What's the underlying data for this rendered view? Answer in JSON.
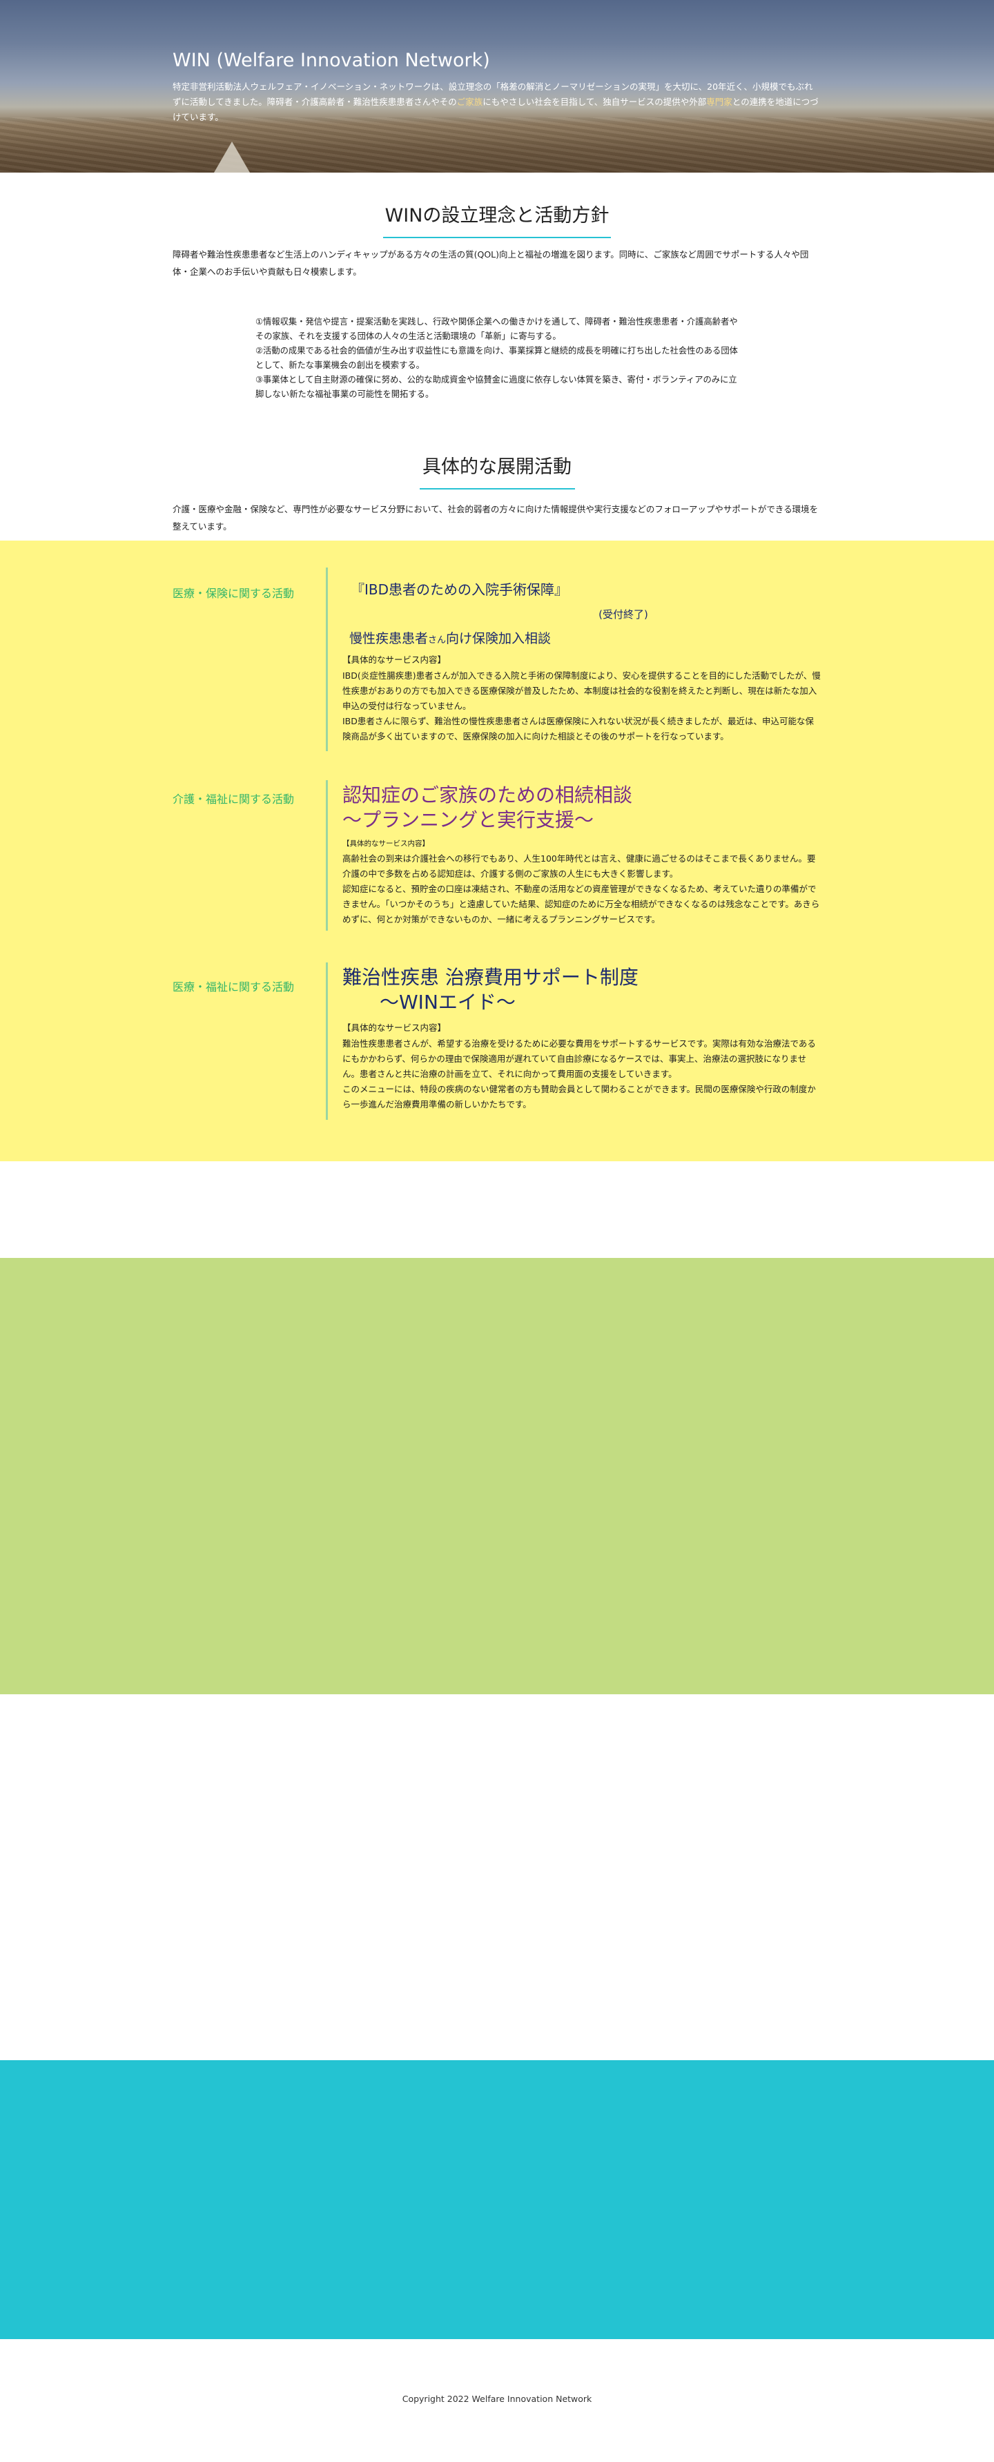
{
  "hero": {
    "title": "WIN (Welfare Innovation Network)",
    "desc_pre": "特定非営利活動法人ウェルフェア・イノベーション・ネットワークは、設立理念の「格差の解消とノーマリゼーションの実現」を大切に、20年近く、小規模でもぶれずに活動してきました。障碍者・介護高齢者・難治性疾患患者さんやその",
    "desc_accent1": "ご家族",
    "desc_mid": "にもやさしい社会を目指して、独自サービスの提供や外部",
    "desc_accent2": "専門家",
    "desc_post": "との連携を地道につづけています。"
  },
  "philosophy": {
    "title": "WINの設立理念と活動方針",
    "lead": "障碍者や難治性疾患患者など生活上のハンディキャップがある方々の生活の質(QOL)向上と福祉の増進を図ります。同時に、ご家族など周囲でサポートする人々や団体・企業へのお手伝いや貢献も日々模索します。",
    "policies": [
      "①情報収集・発信や提言・提案活動を実践し、行政や関係企業への働きかけを通して、障碍者・難治性疾患患者・介護高齢者やその家族、それを支援する団体の人々の生活と活動環境の「革新」に寄与する。",
      "②活動の成果である社会的価値が生み出す収益性にも意識を向け、事業採算と継続的成長を明確に打ち出した社会性のある団体として、新たな事業機会の創出を模索する。",
      "③事業体として自主財源の確保に努め、公的な助成資金や協賛金に過度に依存しない体質を築き、寄付・ボランティアのみに立脚しない新たな福祉事業の可能性を開拓する。"
    ]
  },
  "activities": {
    "title": "具体的な展開活動",
    "lead": "介護・医療や金融・保険など、専門性が必要なサービス分野において、社会的弱者の方々に向けた情報提供や実行支援などのフォローアップやサポートができる環境を整えています。",
    "items": [
      {
        "category": "医療・保険に関する活動",
        "title": "『IBD患者のための入院手術保障』",
        "status": "(受付終了)",
        "subtitle": "慢性疾患患者",
        "subtitle_small": "さん",
        "subtitle_post": "向け保険加入相談",
        "service_label": "【具体的なサービス内容】",
        "body": "IBD(炎症性腸疾患)患者さんが加入できる入院と手術の保障制度により、安心を提供することを目的にした活動でしたが、慢性疾患がおありの方でも加入できる医療保険が普及したため、本制度は社会的な役割を終えたと判断し、現在は新たな加入申込の受付は行なっていません。\nIBD患者さんに限らず、難治性の慢性疾患患者さんは医療保険に入れない状況が長く続きましたが、最近は、申込可能な保険商品が多く出ていますので、医療保険の加入に向けた相談とその後のサポートを行なっています。"
      },
      {
        "category": "介護・福祉に関する活動",
        "title_line1": "認知症のご家族のための相続相談",
        "title_line2": "〜プランニングと実行支援〜",
        "service_label": "【具体的なサービス内容】",
        "body": "高齢社会の到来は介護社会への移行でもあり、人生100年時代とは言え、健康に過ごせるのはそこまで長くありません。要介護の中で多数を占める認知症は、介護する側のご家族の人生にも大きく影響します。\n認知症になると、預貯金の口座は凍結され、不動産の活用などの資産管理ができなくなるため、考えていた遺りの準備ができません。「いつかそのうち」と遠慮していた結果、認知症のために万全な相続ができなくなるのは残念なことです。あきらめずに、何とか対策ができないものか、一緒に考えるプランニングサービスです。"
      },
      {
        "category": "医療・福祉に関する活動",
        "title_line1": "難治性疾患 治療費用サポート制度",
        "title_line2": "〜WINエイド〜",
        "service_label": "【具体的なサービス内容】",
        "body": "難治性疾患患者さんが、希望する治療を受けるために必要な費用をサポートするサービスです。実際は有効な治療法であるにもかかわらず、何らかの理由で保険適用が遅れていて自由診療になるケースでは、事実上、治療法の選択肢になりません。患者さんと共に治療の計画を立て、それに向かって費用面の支援をしていきます。\nこのメニューには、特段の疾病のない健常者の方も賛助会員として関わることができます。民間の医療保険や行政の制度から一歩進んだ治療費用準備の新しいかたちです。"
      }
    ]
  },
  "footer": {
    "copyright": "Copyright 2022 Welfare Innovation Network"
  },
  "colors": {
    "accent_line": "#27c2d4",
    "yellow_band": "#fff685",
    "green_band": "#c2dc82",
    "cyan_band": "#24c3d2",
    "category_text": "#33b56a"
  }
}
